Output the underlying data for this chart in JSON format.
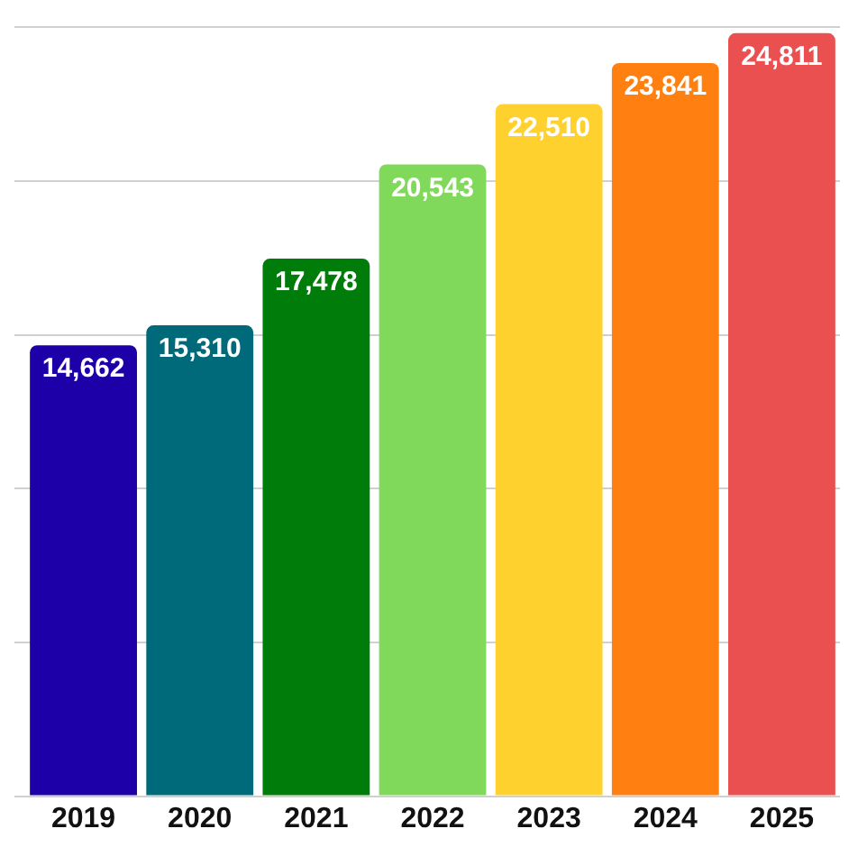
{
  "chart_data": {
    "type": "bar",
    "categories": [
      "2019",
      "2020",
      "2021",
      "2022",
      "2023",
      "2024",
      "2025"
    ],
    "values": [
      14662,
      15310,
      17478,
      20543,
      22510,
      23841,
      24811
    ],
    "value_labels": [
      "14,662",
      "15,310",
      "17,478",
      "20,543",
      "22,510",
      "23,841",
      "24,811"
    ],
    "colors": [
      "#1e00a8",
      "#006a7a",
      "#007c0a",
      "#80d95a",
      "#ffd12e",
      "#ff8010",
      "#ea5050"
    ],
    "grid": "y",
    "tick_labels": "x"
  }
}
